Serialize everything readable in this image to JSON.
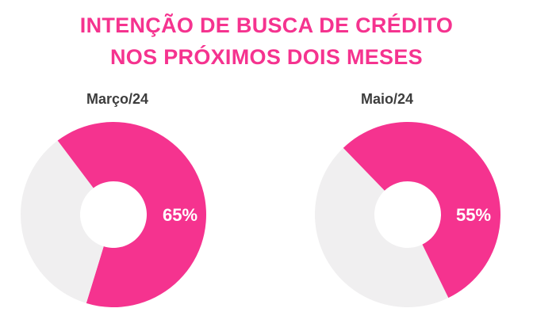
{
  "title_lines": [
    "INTENÇÃO DE BUSCA DE CRÉDITO",
    "NOS PRÓXIMOS DOIS MESES"
  ],
  "colors": {
    "accent": "#f5338f",
    "rest": "#f0eff0",
    "title": "#f5338f",
    "subtitle": "#3d3d3d"
  },
  "chart_data": [
    {
      "type": "pie",
      "title": "Março/24",
      "values": [
        65,
        35
      ],
      "labels": [
        "65%",
        ""
      ]
    },
    {
      "type": "pie",
      "title": "Maio/24",
      "values": [
        55,
        45
      ],
      "labels": [
        "55%",
        ""
      ]
    }
  ]
}
